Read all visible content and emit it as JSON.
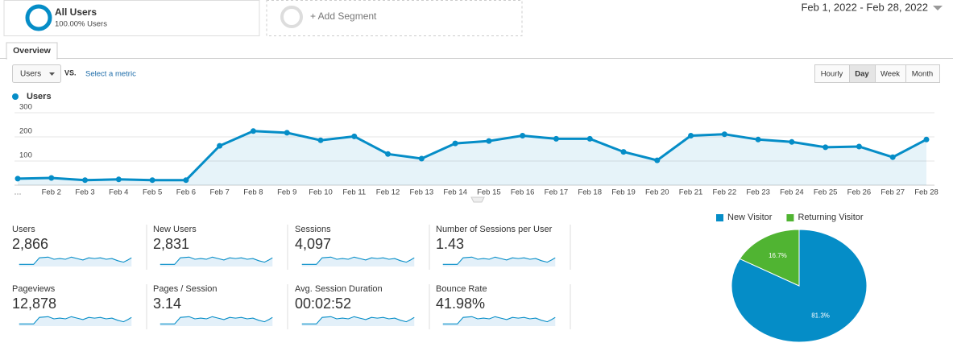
{
  "segments": [
    {
      "title": "All Users",
      "subtitle": "100.00% Users"
    },
    {
      "title": "+ Add Segment"
    }
  ],
  "date_range": "Feb 1, 2022 - Feb 28, 2022",
  "tabs": [
    "Overview"
  ],
  "metric_selector": {
    "metric": "Users",
    "vs": "VS.",
    "link": "Select a metric"
  },
  "granularity": [
    "Hourly",
    "Day",
    "Week",
    "Month"
  ],
  "selected_granularity": "Day",
  "metrics": [
    {
      "label": "Users",
      "value": "2,866"
    },
    {
      "label": "New Users",
      "value": "2,831"
    },
    {
      "label": "Sessions",
      "value": "4,097"
    },
    {
      "label": "Number of Sessions per User",
      "value": "1.43"
    },
    {
      "label": "Pageviews",
      "value": "12,878"
    },
    {
      "label": "Pages / Session",
      "value": "3.14"
    },
    {
      "label": "Avg. Session Duration",
      "value": "00:02:52"
    },
    {
      "label": "Bounce Rate",
      "value": "41.98%"
    }
  ],
  "chart_data": [
    {
      "type": "line",
      "categories": [
        "…",
        "Feb 2",
        "Feb 3",
        "Feb 4",
        "Feb 5",
        "Feb 6",
        "Feb 7",
        "Feb 8",
        "Feb 9",
        "Feb 10",
        "Feb 11",
        "Feb 12",
        "Feb 13",
        "Feb 14",
        "Feb 15",
        "Feb 16",
        "Feb 17",
        "Feb 18",
        "Feb 19",
        "Feb 20",
        "Feb 21",
        "Feb 22",
        "Feb 23",
        "Feb 24",
        "Feb 25",
        "Feb 26",
        "Feb 27",
        "Feb 28"
      ],
      "series": [
        {
          "name": "Users",
          "color": "#058dc7",
          "values": [
            27,
            30,
            21,
            24,
            21,
            21,
            163,
            224,
            217,
            186,
            202,
            129,
            110,
            173,
            183,
            205,
            192,
            192,
            138,
            103,
            205,
            211,
            189,
            179,
            157,
            160,
            116,
            189
          ]
        }
      ],
      "ylim": [
        0,
        300
      ],
      "yticks": [
        100,
        200,
        300
      ],
      "grid": true
    },
    {
      "type": "pie",
      "categories": [
        "New Visitor",
        "Returning Visitor"
      ],
      "values": [
        81.3,
        16.7
      ],
      "value_labels": [
        "81.3%",
        "16.7%"
      ],
      "colors": [
        "#058dc7",
        "#50b432"
      ],
      "legend": "top"
    }
  ]
}
